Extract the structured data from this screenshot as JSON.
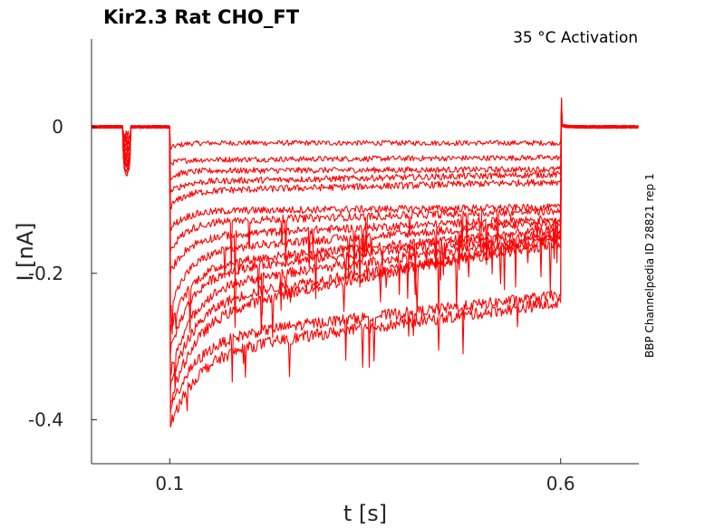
{
  "chart_data": {
    "type": "line",
    "title": "Kir2.3  Rat  CHO_FT",
    "subtitle": "35 °C  Activation",
    "side_label": "BBP Channelpedia ID 28821 rep 1",
    "xlabel": "t [s]",
    "ylabel": "I [nA]",
    "xlim": [
      0.0,
      0.7
    ],
    "ylim": [
      -0.46,
      0.12
    ],
    "x_ticks": [
      {
        "value": 0.1,
        "label": "0.1"
      },
      {
        "value": 0.6,
        "label": "0.6"
      }
    ],
    "y_ticks": [
      {
        "value": 0,
        "label": "0"
      },
      {
        "value": -0.2,
        "label": "-0.2"
      },
      {
        "value": -0.4,
        "label": "-0.4"
      }
    ],
    "grid": false,
    "line_color": "#ff0000",
    "step_on": 0.1,
    "step_off": 0.6,
    "prepulse_window": [
      0.04,
      0.05
    ],
    "series": [
      {
        "peak": -0.03,
        "start": -0.022,
        "end": -0.022
      },
      {
        "peak": -0.05,
        "start": -0.045,
        "end": -0.042
      },
      {
        "peak": -0.07,
        "start": -0.06,
        "end": -0.058
      },
      {
        "peak": -0.09,
        "start": -0.075,
        "end": -0.065
      },
      {
        "peak": -0.11,
        "start": -0.088,
        "end": -0.075
      },
      {
        "peak": -0.14,
        "start": -0.115,
        "end": -0.11
      },
      {
        "peak": -0.17,
        "start": -0.13,
        "end": -0.115
      },
      {
        "peak": -0.2,
        "start": -0.15,
        "end": -0.125
      },
      {
        "peak": -0.25,
        "start": -0.17,
        "end": -0.13
      },
      {
        "peak": -0.28,
        "start": -0.19,
        "end": -0.14
      },
      {
        "peak": -0.31,
        "start": -0.2,
        "end": -0.145
      },
      {
        "peak": -0.34,
        "start": -0.22,
        "end": -0.15
      },
      {
        "peak": -0.36,
        "start": -0.24,
        "end": -0.16
      },
      {
        "peak": -0.38,
        "start": -0.26,
        "end": -0.15
      },
      {
        "peak": -0.39,
        "start": -0.29,
        "end": -0.23
      },
      {
        "peak": -0.41,
        "start": -0.31,
        "end": -0.24
      }
    ]
  }
}
